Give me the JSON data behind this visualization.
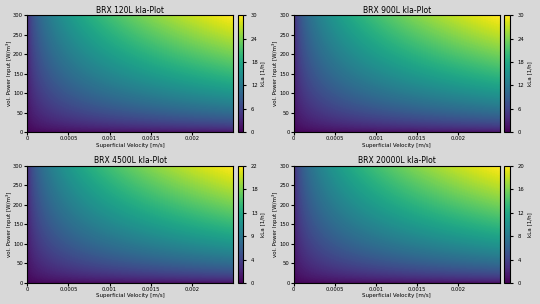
{
  "plots": [
    {
      "title": "BRX 120L kla-Plot",
      "alpha": 0.6,
      "beta": 0.4,
      "kla_max": 30
    },
    {
      "title": "BRX 900L kla-Plot",
      "alpha": 0.6,
      "beta": 0.4,
      "kla_max": 30
    },
    {
      "title": "BRX 4500L kla-Plot",
      "alpha": 0.6,
      "beta": 0.4,
      "kla_max": 22
    },
    {
      "title": "BRX 20000L kla-Plot",
      "alpha": 0.6,
      "beta": 0.4,
      "kla_max": 20
    }
  ],
  "x_min": 0,
  "x_max": 0.0025,
  "y_min": 0,
  "y_max": 300,
  "cbar_label": "kLa [1/h]",
  "xlabel": "Superficial Velocity [m/s]",
  "ylabel": "vol. Power Input [W/m³]",
  "colormap": "viridis",
  "n_levels": 200,
  "n_contour_lines": 11,
  "background_color": "#d8d8d8",
  "fig_background": "#d8d8d8"
}
